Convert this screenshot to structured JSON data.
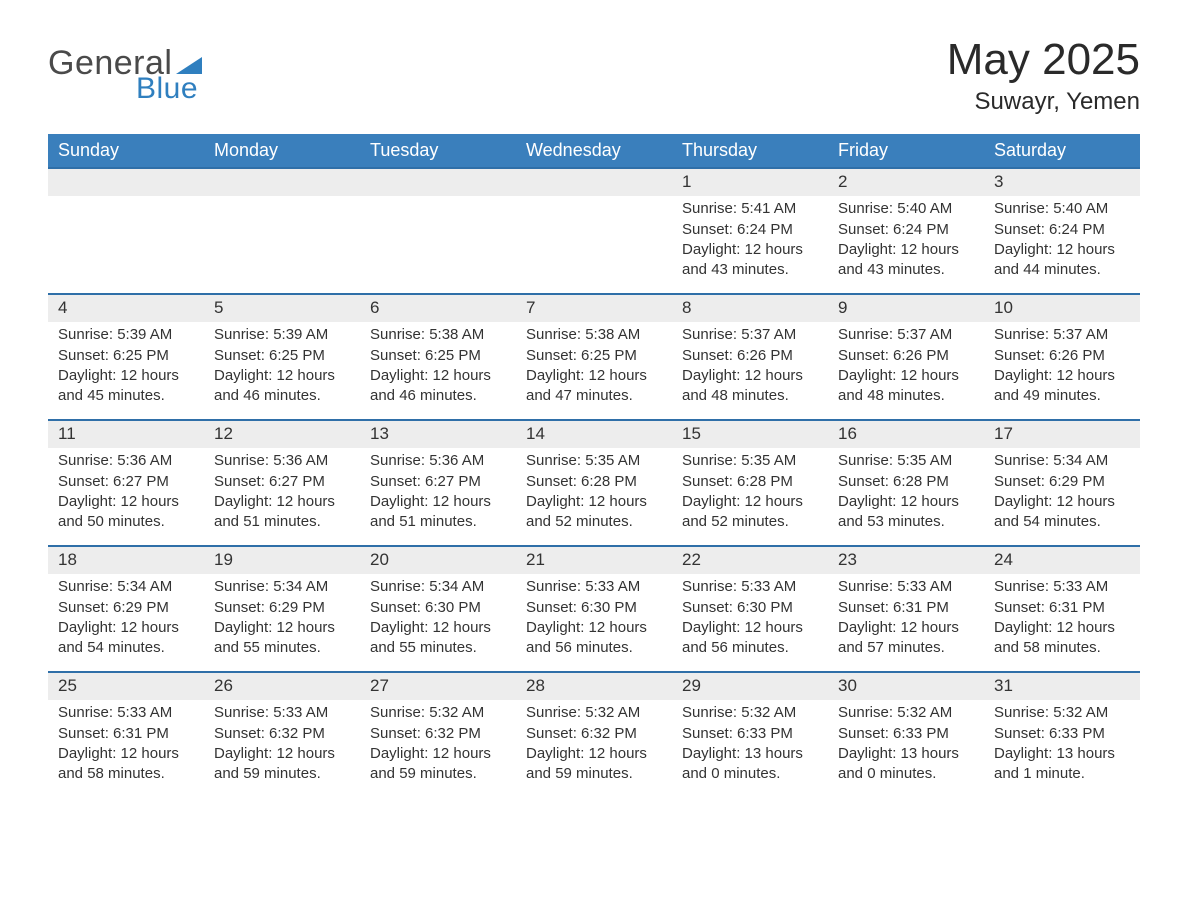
{
  "brand": {
    "word1": "General",
    "word2": "Blue",
    "accent_color": "#2f7fbf",
    "text_color": "#4a4a4a"
  },
  "title": "May 2025",
  "location": "Suwayr, Yemen",
  "colors": {
    "header_bg": "#3a7fbc",
    "header_text": "#ffffff",
    "row_divider": "#2f6fa8",
    "daynum_bg": "#ededed",
    "body_text": "#333333",
    "page_bg": "#ffffff"
  },
  "weekdays": [
    "Sunday",
    "Monday",
    "Tuesday",
    "Wednesday",
    "Thursday",
    "Friday",
    "Saturday"
  ],
  "weeks": [
    [
      {
        "blank": true
      },
      {
        "blank": true
      },
      {
        "blank": true
      },
      {
        "blank": true
      },
      {
        "n": "1",
        "sr": "5:41 AM",
        "ss": "6:24 PM",
        "dl": "12 hours and 43 minutes."
      },
      {
        "n": "2",
        "sr": "5:40 AM",
        "ss": "6:24 PM",
        "dl": "12 hours and 43 minutes."
      },
      {
        "n": "3",
        "sr": "5:40 AM",
        "ss": "6:24 PM",
        "dl": "12 hours and 44 minutes."
      }
    ],
    [
      {
        "n": "4",
        "sr": "5:39 AM",
        "ss": "6:25 PM",
        "dl": "12 hours and 45 minutes."
      },
      {
        "n": "5",
        "sr": "5:39 AM",
        "ss": "6:25 PM",
        "dl": "12 hours and 46 minutes."
      },
      {
        "n": "6",
        "sr": "5:38 AM",
        "ss": "6:25 PM",
        "dl": "12 hours and 46 minutes."
      },
      {
        "n": "7",
        "sr": "5:38 AM",
        "ss": "6:25 PM",
        "dl": "12 hours and 47 minutes."
      },
      {
        "n": "8",
        "sr": "5:37 AM",
        "ss": "6:26 PM",
        "dl": "12 hours and 48 minutes."
      },
      {
        "n": "9",
        "sr": "5:37 AM",
        "ss": "6:26 PM",
        "dl": "12 hours and 48 minutes."
      },
      {
        "n": "10",
        "sr": "5:37 AM",
        "ss": "6:26 PM",
        "dl": "12 hours and 49 minutes."
      }
    ],
    [
      {
        "n": "11",
        "sr": "5:36 AM",
        "ss": "6:27 PM",
        "dl": "12 hours and 50 minutes."
      },
      {
        "n": "12",
        "sr": "5:36 AM",
        "ss": "6:27 PM",
        "dl": "12 hours and 51 minutes."
      },
      {
        "n": "13",
        "sr": "5:36 AM",
        "ss": "6:27 PM",
        "dl": "12 hours and 51 minutes."
      },
      {
        "n": "14",
        "sr": "5:35 AM",
        "ss": "6:28 PM",
        "dl": "12 hours and 52 minutes."
      },
      {
        "n": "15",
        "sr": "5:35 AM",
        "ss": "6:28 PM",
        "dl": "12 hours and 52 minutes."
      },
      {
        "n": "16",
        "sr": "5:35 AM",
        "ss": "6:28 PM",
        "dl": "12 hours and 53 minutes."
      },
      {
        "n": "17",
        "sr": "5:34 AM",
        "ss": "6:29 PM",
        "dl": "12 hours and 54 minutes."
      }
    ],
    [
      {
        "n": "18",
        "sr": "5:34 AM",
        "ss": "6:29 PM",
        "dl": "12 hours and 54 minutes."
      },
      {
        "n": "19",
        "sr": "5:34 AM",
        "ss": "6:29 PM",
        "dl": "12 hours and 55 minutes."
      },
      {
        "n": "20",
        "sr": "5:34 AM",
        "ss": "6:30 PM",
        "dl": "12 hours and 55 minutes."
      },
      {
        "n": "21",
        "sr": "5:33 AM",
        "ss": "6:30 PM",
        "dl": "12 hours and 56 minutes."
      },
      {
        "n": "22",
        "sr": "5:33 AM",
        "ss": "6:30 PM",
        "dl": "12 hours and 56 minutes."
      },
      {
        "n": "23",
        "sr": "5:33 AM",
        "ss": "6:31 PM",
        "dl": "12 hours and 57 minutes."
      },
      {
        "n": "24",
        "sr": "5:33 AM",
        "ss": "6:31 PM",
        "dl": "12 hours and 58 minutes."
      }
    ],
    [
      {
        "n": "25",
        "sr": "5:33 AM",
        "ss": "6:31 PM",
        "dl": "12 hours and 58 minutes."
      },
      {
        "n": "26",
        "sr": "5:33 AM",
        "ss": "6:32 PM",
        "dl": "12 hours and 59 minutes."
      },
      {
        "n": "27",
        "sr": "5:32 AM",
        "ss": "6:32 PM",
        "dl": "12 hours and 59 minutes."
      },
      {
        "n": "28",
        "sr": "5:32 AM",
        "ss": "6:32 PM",
        "dl": "12 hours and 59 minutes."
      },
      {
        "n": "29",
        "sr": "5:32 AM",
        "ss": "6:33 PM",
        "dl": "13 hours and 0 minutes."
      },
      {
        "n": "30",
        "sr": "5:32 AM",
        "ss": "6:33 PM",
        "dl": "13 hours and 0 minutes."
      },
      {
        "n": "31",
        "sr": "5:32 AM",
        "ss": "6:33 PM",
        "dl": "13 hours and 1 minute."
      }
    ]
  ],
  "labels": {
    "sunrise": "Sunrise: ",
    "sunset": "Sunset: ",
    "daylight": "Daylight: "
  }
}
